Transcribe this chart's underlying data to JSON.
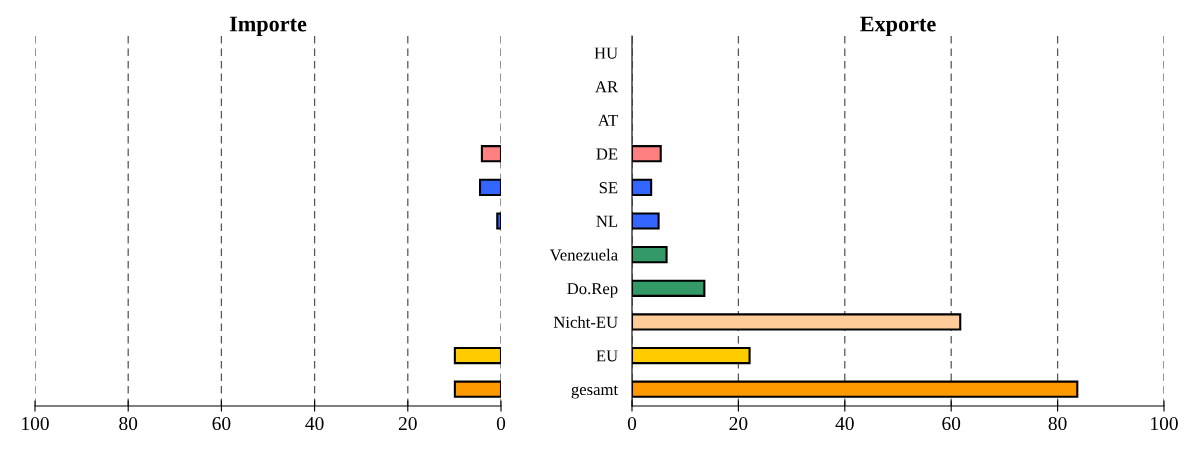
{
  "chart_data": [
    {
      "type": "bar",
      "orientation": "horizontal",
      "title": "Importe",
      "categories": [
        null,
        null,
        null,
        null,
        null,
        null,
        null,
        null,
        null,
        null,
        null
      ],
      "values": [
        null,
        null,
        null,
        4.1,
        4.5,
        0.8,
        null,
        null,
        null,
        9.9,
        9.9
      ],
      "colors": [
        "#ff8080",
        "#3366ff",
        "#3366ff",
        "#ff8080",
        "#3366ff",
        "#3366ff",
        "#339966",
        "#339966",
        "#ffcc99",
        "#ffcc00",
        "#ff9900"
      ],
      "xlim": [
        100,
        0
      ],
      "xticks": [
        100,
        80,
        60,
        40,
        20,
        0
      ],
      "grid": "x",
      "tick_labels": "x"
    },
    {
      "type": "bar",
      "orientation": "horizontal",
      "title": "Exporte",
      "categories": [
        "HU",
        "AR",
        "AT",
        "DE",
        "SE",
        "NL",
        "Venezuela",
        "Do.Rep",
        "Nicht-EU",
        "EU",
        "gesamt"
      ],
      "values": [
        null,
        null,
        null,
        5.4,
        3.6,
        5.0,
        6.5,
        13.6,
        61.7,
        22.1,
        83.7
      ],
      "colors": [
        "#ff8080",
        "#3366ff",
        "#3366ff",
        "#ff8080",
        "#3366ff",
        "#3366ff",
        "#339966",
        "#339966",
        "#ffcc99",
        "#ffcc00",
        "#ff9900"
      ],
      "xlim": [
        0,
        100
      ],
      "xticks": [
        0,
        20,
        40,
        60,
        80,
        100
      ],
      "grid": "x"
    }
  ]
}
